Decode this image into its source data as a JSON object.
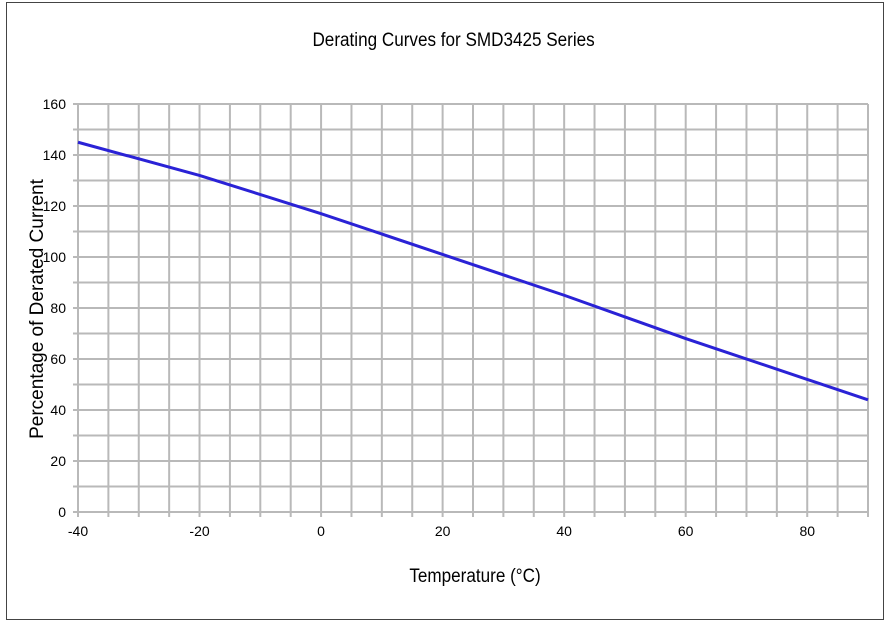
{
  "chart_data": {
    "type": "line",
    "title": "Derating Curves for SMD3425 Series",
    "xlabel": "Temperature (°C)",
    "ylabel": "Percentage of Derated Current",
    "xlim": [
      -40,
      90
    ],
    "ylim": [
      0,
      160
    ],
    "x_ticks": [
      -40,
      -20,
      0,
      20,
      40,
      60,
      80
    ],
    "y_ticks": [
      0,
      20,
      40,
      60,
      80,
      100,
      120,
      140,
      160
    ],
    "x_grid_step": 5,
    "y_grid_step": 10,
    "grid": true,
    "series": [
      {
        "color": "#2a22d6",
        "x": [
          -40,
          -20,
          0,
          20,
          40,
          60,
          80,
          90
        ],
        "y": [
          145,
          132,
          117,
          101,
          85,
          68,
          52,
          44
        ]
      }
    ]
  }
}
